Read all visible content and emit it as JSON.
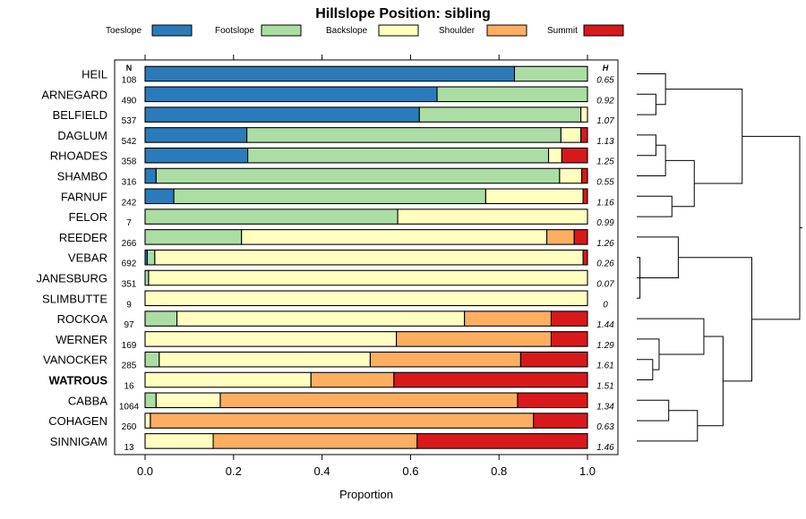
{
  "chart_data": {
    "type": "bar",
    "stacked": true,
    "orientation": "horizontal",
    "title": "Hillslope Position: sibling",
    "xlabel": "Proportion",
    "ylabel": "",
    "xlim": [
      0,
      1
    ],
    "xticks": [
      "0.0",
      "0.2",
      "0.4",
      "0.6",
      "0.8",
      "1.0"
    ],
    "xtick_values": [
      0,
      0.2,
      0.4,
      0.6,
      0.8,
      1.0
    ],
    "n_header": "N",
    "h_header": "H",
    "legend": [
      {
        "name": "Toeslope",
        "color": "#2b7bba"
      },
      {
        "name": "Footslope",
        "color": "#abdda4"
      },
      {
        "name": "Backslope",
        "color": "#ffffbf"
      },
      {
        "name": "Shoulder",
        "color": "#fdae61"
      },
      {
        "name": "Summit",
        "color": "#d7191c"
      }
    ],
    "categories": [
      "HEIL",
      "ARNEGARD",
      "BELFIELD",
      "DAGLUM",
      "RHOADES",
      "SHAMBO",
      "FARNUF",
      "FELOR",
      "REEDER",
      "VEBAR",
      "JANESBURG",
      "SLIMBUTTE",
      "ROCKOA",
      "WERNER",
      "VANOCKER",
      "WATROUS",
      "CABBA",
      "COHAGEN",
      "SINNIGAM"
    ],
    "highlight": "WATROUS",
    "rows": [
      {
        "label": "HEIL",
        "n": "108",
        "h": "0.65",
        "values": [
          0.835,
          0.165,
          0,
          0,
          0
        ]
      },
      {
        "label": "ARNEGARD",
        "n": "490",
        "h": "0.92",
        "values": [
          0.66,
          0.34,
          0,
          0,
          0
        ]
      },
      {
        "label": "BELFIELD",
        "n": "537",
        "h": "1.07",
        "values": [
          0.62,
          0.365,
          0.015,
          0,
          0
        ]
      },
      {
        "label": "DAGLUM",
        "n": "542",
        "h": "1.13",
        "values": [
          0.23,
          0.71,
          0.045,
          0,
          0.015
        ]
      },
      {
        "label": "RHOADES",
        "n": "358",
        "h": "1.25",
        "values": [
          0.232,
          0.68,
          0.03,
          0,
          0.058
        ]
      },
      {
        "label": "SHAMBO",
        "n": "316",
        "h": "0.55",
        "values": [
          0.025,
          0.912,
          0.05,
          0,
          0.013
        ]
      },
      {
        "label": "FARNUF",
        "n": "242",
        "h": "1.16",
        "values": [
          0.065,
          0.705,
          0.22,
          0,
          0.01
        ]
      },
      {
        "label": "FELOR",
        "n": "7",
        "h": "0.99",
        "values": [
          0,
          0.571,
          0.429,
          0,
          0
        ]
      },
      {
        "label": "REEDER",
        "n": "266",
        "h": "1.26",
        "values": [
          0,
          0.218,
          0.69,
          0.062,
          0.03
        ]
      },
      {
        "label": "VEBAR",
        "n": "692",
        "h": "0.26",
        "values": [
          0.005,
          0.017,
          0.968,
          0,
          0.01
        ]
      },
      {
        "label": "JANESBURG",
        "n": "351",
        "h": "0.07",
        "values": [
          0,
          0.008,
          0.992,
          0,
          0
        ]
      },
      {
        "label": "SLIMBUTTE",
        "n": "9",
        "h": "0",
        "values": [
          0,
          0,
          1.0,
          0,
          0
        ]
      },
      {
        "label": "ROCKOA",
        "n": "97",
        "h": "1.44",
        "values": [
          0,
          0.072,
          0.65,
          0.196,
          0.082
        ]
      },
      {
        "label": "WERNER",
        "n": "169",
        "h": "1.29",
        "values": [
          0,
          0,
          0.568,
          0.35,
          0.082
        ]
      },
      {
        "label": "VANOCKER",
        "n": "285",
        "h": "1.61",
        "values": [
          0,
          0.032,
          0.477,
          0.34,
          0.151
        ]
      },
      {
        "label": "WATROUS",
        "n": "16",
        "h": "1.51",
        "values": [
          0,
          0,
          0.375,
          0.1875,
          0.4375
        ]
      },
      {
        "label": "CABBA",
        "n": "1064",
        "h": "1.34",
        "values": [
          0,
          0.025,
          0.145,
          0.672,
          0.158
        ]
      },
      {
        "label": "COHAGEN",
        "n": "260",
        "h": "0.63",
        "values": [
          0,
          0,
          0.012,
          0.866,
          0.122
        ]
      },
      {
        "label": "SINNIGAM",
        "n": "13",
        "h": "1.46",
        "values": [
          0,
          0,
          0.154,
          0.461,
          0.385
        ]
      }
    ],
    "dendrogram": {
      "description": "hierarchical clustering of the 19 soil series, leaves in the same order as the rows",
      "merges": [
        {
          "a": "VEBAR",
          "b": "SLIMBUTTE",
          "height": 0.01
        },
        {
          "a": "JANESBURG",
          "b": "m1",
          "height": 0.03
        },
        {
          "a": "m2",
          "b": "REEDER",
          "height": 0.13
        },
        {
          "a": "ARNEGARD",
          "b": "BELFIELD",
          "height": 0.06
        },
        {
          "a": "HEIL",
          "b": "m4",
          "height": 0.09
        },
        {
          "a": "DAGLUM",
          "b": "RHOADES",
          "height": 0.06
        },
        {
          "a": "m6",
          "b": "SHAMBO",
          "height": 0.09
        },
        {
          "a": "FARNUF",
          "b": "FELOR",
          "height": 0.11
        },
        {
          "a": "m7",
          "b": "m8",
          "height": 0.18
        },
        {
          "a": "m5",
          "b": "m9",
          "height": 0.33
        },
        {
          "a": "VANOCKER",
          "b": "WATROUS",
          "height": 0.05
        },
        {
          "a": "WERNER",
          "b": "m11",
          "height": 0.07
        },
        {
          "a": "ROCKOA",
          "b": "m12",
          "height": 0.21
        },
        {
          "a": "CABBA",
          "b": "COHAGEN",
          "height": 0.1
        },
        {
          "a": "m14",
          "b": "SINNIGAM",
          "height": 0.19
        },
        {
          "a": "m13",
          "b": "m15",
          "height": 0.27
        },
        {
          "a": "m3",
          "b": "m16",
          "height": 0.36
        },
        {
          "a": "m10",
          "b": "m17",
          "height": 0.51
        }
      ],
      "max_height": 0.51
    }
  }
}
